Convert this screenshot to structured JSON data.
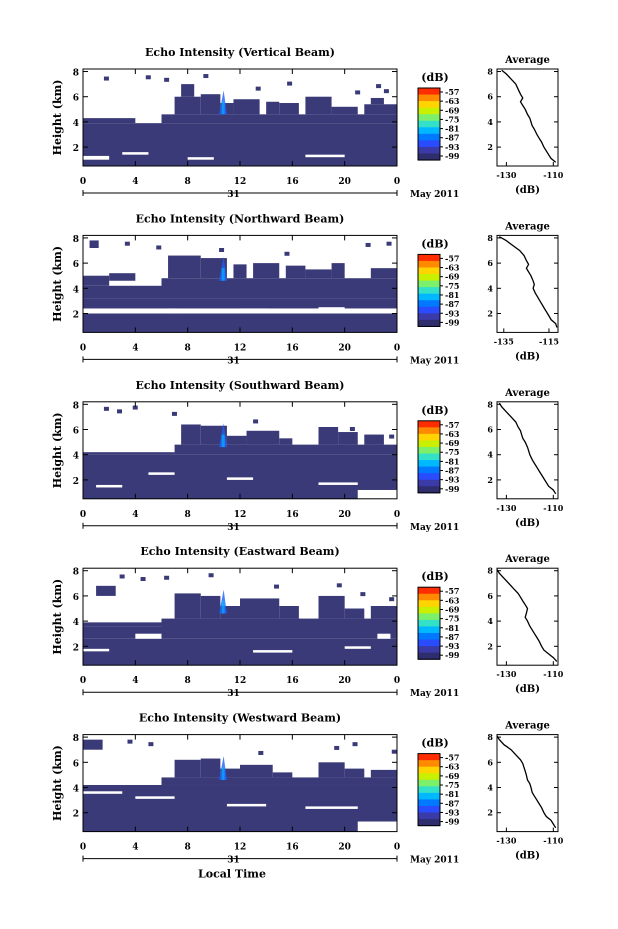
{
  "figure": {
    "bottom_xlabel": "Local Time",
    "date_label": "May 2011",
    "day_label": "31"
  },
  "colorbar": {
    "unit_label": "(dB)",
    "ticks": [
      "-57",
      "-63",
      "-69",
      "-75",
      "-81",
      "-87",
      "-93",
      "-99"
    ],
    "colors": [
      "#ff2d00",
      "#ff8a00",
      "#ffd400",
      "#c8f000",
      "#7cf06a",
      "#33e0c8",
      "#00b8ff",
      "#0078ff",
      "#2a4cff",
      "#3a3aa8",
      "#2e2e6e"
    ]
  },
  "chart_data": [
    {
      "type": "heatmap",
      "title": "Echo Intensity (Vertical Beam)",
      "ylabel": "Height (km)",
      "x_ticks": [
        "0",
        "4",
        "8",
        "12",
        "16",
        "20",
        "0"
      ],
      "y_ticks": [
        "2",
        "4",
        "6",
        "8"
      ],
      "xlim": [
        0,
        24
      ],
      "ylim": [
        0.5,
        8.2
      ],
      "fill_color": "#3a3a78",
      "cells": [
        [
          0,
          24,
          0.5,
          3.9
        ],
        [
          0,
          4,
          3.9,
          4.3
        ],
        [
          6,
          24,
          3.9,
          4.6
        ],
        [
          7,
          9,
          4.6,
          6.0
        ],
        [
          7.5,
          8.5,
          6.0,
          7.0
        ],
        [
          9,
          10.5,
          4.6,
          6.2
        ],
        [
          10.5,
          11.5,
          4.6,
          5.5
        ],
        [
          11.5,
          13.5,
          4.6,
          5.8
        ],
        [
          14,
          15,
          4.6,
          5.6
        ],
        [
          15,
          16.5,
          4.6,
          5.5
        ],
        [
          17,
          19,
          4.6,
          6.0
        ],
        [
          19,
          21,
          4.6,
          5.2
        ],
        [
          21.5,
          24,
          4.6,
          5.4
        ],
        [
          22,
          23,
          5.4,
          5.9
        ]
      ],
      "gaps": [
        [
          0,
          2,
          1.0,
          1.3
        ],
        [
          3,
          5,
          1.4,
          1.6
        ],
        [
          8,
          10,
          1.0,
          1.2
        ],
        [
          17,
          20,
          1.2,
          1.4
        ]
      ],
      "specks": [
        [
          1.6,
          7.6
        ],
        [
          4.8,
          7.7
        ],
        [
          6.2,
          7.5
        ],
        [
          9.2,
          7.8
        ],
        [
          13.2,
          6.8
        ],
        [
          15.6,
          7.2
        ],
        [
          20.8,
          6.5
        ],
        [
          23.0,
          6.6
        ],
        [
          22.4,
          7.0
        ]
      ],
      "profile": {
        "title": "Average",
        "xlabel": "(dB)",
        "x_ticks": [
          "-130",
          "-110"
        ],
        "x_tick_values": [
          -130,
          -110
        ],
        "y_ticks": [
          "2",
          "4",
          "6",
          "8"
        ],
        "xlim": [
          -134,
          -108
        ],
        "ylim": [
          0.5,
          8.2
        ],
        "x": [
          -109,
          -111,
          -112,
          -113,
          -114,
          -115,
          -116,
          -117,
          -118,
          -119,
          -119.5,
          -120,
          -121,
          -122,
          -123,
          -124,
          -123,
          -124,
          -125,
          -126,
          -128,
          -130,
          -132
        ],
        "y": [
          0.8,
          1.1,
          1.4,
          1.7,
          2.0,
          2.4,
          2.7,
          3.0,
          3.4,
          3.7,
          4.0,
          4.3,
          4.6,
          5.0,
          5.3,
          5.6,
          5.9,
          6.2,
          6.6,
          7.0,
          7.4,
          7.8,
          8.1
        ]
      }
    },
    {
      "type": "heatmap",
      "title": "Echo Intensity (Northward Beam)",
      "ylabel": "Height (km)",
      "x_ticks": [
        "0",
        "4",
        "8",
        "12",
        "16",
        "20",
        "0"
      ],
      "y_ticks": [
        "2",
        "4",
        "6",
        "8"
      ],
      "xlim": [
        0,
        24
      ],
      "ylim": [
        0.5,
        8.2
      ],
      "fill_color": "#3a3a78",
      "cells": [
        [
          0,
          24,
          0.5,
          2.0
        ],
        [
          0,
          24,
          2.4,
          3.2
        ],
        [
          0,
          6,
          3.2,
          4.2
        ],
        [
          6,
          24,
          3.2,
          4.8
        ],
        [
          0,
          2,
          4.2,
          5.0
        ],
        [
          2,
          4,
          4.6,
          5.2
        ],
        [
          6.5,
          9,
          4.8,
          6.6
        ],
        [
          9,
          11,
          4.8,
          6.4
        ],
        [
          11.5,
          12.5,
          4.8,
          5.9
        ],
        [
          13,
          15,
          4.8,
          6.0
        ],
        [
          15.5,
          17,
          4.8,
          5.8
        ],
        [
          17,
          19,
          4.8,
          5.5
        ],
        [
          19,
          20,
          4.8,
          6.0
        ],
        [
          22,
          24,
          4.8,
          5.6
        ],
        [
          0.5,
          1.2,
          7.2,
          7.8
        ]
      ],
      "gaps": [
        [
          6.5,
          7.2,
          2.0,
          2.4
        ],
        [
          12,
          14,
          2.1,
          2.4
        ],
        [
          18,
          20,
          2.2,
          2.5
        ]
      ],
      "specks": [
        [
          3.2,
          7.7
        ],
        [
          5.6,
          7.4
        ],
        [
          10.4,
          7.2
        ],
        [
          15.4,
          6.9
        ],
        [
          21.6,
          7.6
        ],
        [
          23.2,
          7.7
        ]
      ],
      "profile": {
        "title": "Average",
        "xlabel": "(dB)",
        "x_ticks": [
          "-135",
          "-115"
        ],
        "x_tick_values": [
          -135,
          -115
        ],
        "y_ticks": [
          "2",
          "4",
          "6",
          "8"
        ],
        "xlim": [
          -138,
          -111
        ],
        "ylim": [
          0.5,
          8.2
        ],
        "x": [
          -111.5,
          -112,
          -114,
          -115,
          -116,
          -117,
          -118,
          -119,
          -120,
          -121,
          -122,
          -121.5,
          -122,
          -123,
          -124,
          -125,
          -124,
          -125,
          -126,
          -128,
          -131,
          -134,
          -137
        ],
        "y": [
          0.9,
          1.2,
          1.5,
          1.8,
          2.1,
          2.4,
          2.7,
          3.0,
          3.3,
          3.6,
          4.0,
          4.3,
          4.6,
          5.0,
          5.3,
          5.6,
          5.9,
          6.2,
          6.6,
          7.0,
          7.4,
          7.8,
          8.1
        ]
      }
    },
    {
      "type": "heatmap",
      "title": "Echo Intensity (Southward Beam)",
      "ylabel": "Height (km)",
      "x_ticks": [
        "0",
        "4",
        "8",
        "12",
        "16",
        "20",
        "0"
      ],
      "y_ticks": [
        "2",
        "4",
        "6",
        "8"
      ],
      "xlim": [
        0,
        24
      ],
      "ylim": [
        0.5,
        8.2
      ],
      "fill_color": "#3a3a78",
      "cells": [
        [
          0,
          24,
          0.5,
          4.0
        ],
        [
          0,
          7,
          4.0,
          4.2
        ],
        [
          7,
          24,
          4.0,
          4.8
        ],
        [
          7.5,
          9,
          4.8,
          6.4
        ],
        [
          9,
          11,
          4.8,
          6.3
        ],
        [
          11,
          12.5,
          4.8,
          5.5
        ],
        [
          12.5,
          15,
          4.8,
          5.9
        ],
        [
          15,
          16,
          4.8,
          5.3
        ],
        [
          18,
          19.5,
          4.8,
          6.2
        ],
        [
          19.5,
          21,
          4.8,
          5.8
        ],
        [
          21.5,
          23,
          4.8,
          5.6
        ]
      ],
      "gaps": [
        [
          1,
          3,
          1.4,
          1.6
        ],
        [
          5,
          7,
          2.4,
          2.6
        ],
        [
          11,
          13,
          2.0,
          2.2
        ],
        [
          18,
          21,
          1.6,
          1.8
        ],
        [
          21,
          24,
          0.5,
          1.2
        ]
      ],
      "specks": [
        [
          1.6,
          7.8
        ],
        [
          2.6,
          7.6
        ],
        [
          3.8,
          7.9
        ],
        [
          6.8,
          7.4
        ],
        [
          13.0,
          6.8
        ],
        [
          20.4,
          6.2
        ],
        [
          23.4,
          5.6
        ]
      ],
      "profile": {
        "title": "Average",
        "xlabel": "(dB)",
        "x_ticks": [
          "-130",
          "-110"
        ],
        "x_tick_values": [
          -130,
          -110
        ],
        "y_ticks": [
          "2",
          "4",
          "6",
          "8"
        ],
        "xlim": [
          -134,
          -108
        ],
        "ylim": [
          0.5,
          8.2
        ],
        "x": [
          -109,
          -110,
          -112,
          -113,
          -114,
          -115,
          -116,
          -117,
          -118,
          -119,
          -120,
          -120.5,
          -121,
          -122,
          -123,
          -123.5,
          -124,
          -125,
          -126,
          -128,
          -130,
          -132,
          -133
        ],
        "y": [
          0.9,
          1.2,
          1.5,
          1.8,
          2.1,
          2.4,
          2.7,
          3.0,
          3.3,
          3.6,
          4.0,
          4.3,
          4.6,
          5.0,
          5.3,
          5.6,
          5.9,
          6.2,
          6.6,
          7.0,
          7.4,
          7.8,
          8.1
        ]
      }
    },
    {
      "type": "heatmap",
      "title": "Echo Intensity (Eastward Beam)",
      "ylabel": "Height (km)",
      "x_ticks": [
        "0",
        "4",
        "8",
        "12",
        "16",
        "20",
        "0"
      ],
      "y_ticks": [
        "2",
        "4",
        "6",
        "8"
      ],
      "xlim": [
        0,
        24
      ],
      "ylim": [
        0.5,
        8.2
      ],
      "fill_color": "#3a3a78",
      "cells": [
        [
          0,
          24,
          0.5,
          2.6
        ],
        [
          0,
          6,
          2.6,
          3.6
        ],
        [
          6,
          24,
          2.6,
          4.2
        ],
        [
          0,
          6,
          3.6,
          3.9
        ],
        [
          7,
          9,
          4.2,
          6.2
        ],
        [
          9,
          10.5,
          4.2,
          6.0
        ],
        [
          10.5,
          12,
          4.2,
          5.2
        ],
        [
          12,
          15,
          4.2,
          5.8
        ],
        [
          15,
          16.5,
          4.2,
          5.2
        ],
        [
          18,
          20,
          4.2,
          6.0
        ],
        [
          20,
          21.5,
          4.2,
          5.0
        ],
        [
          22,
          24,
          4.2,
          5.2
        ],
        [
          1,
          2.5,
          6.0,
          6.8
        ]
      ],
      "gaps": [
        [
          0,
          2,
          1.6,
          1.8
        ],
        [
          4,
          6,
          2.6,
          3.0
        ],
        [
          13,
          16,
          1.5,
          1.7
        ],
        [
          20,
          22,
          1.8,
          2.0
        ],
        [
          22.5,
          23.5,
          2.6,
          3.0
        ]
      ],
      "specks": [
        [
          2.8,
          7.7
        ],
        [
          4.4,
          7.5
        ],
        [
          6.2,
          7.6
        ],
        [
          9.6,
          7.8
        ],
        [
          14.6,
          6.9
        ],
        [
          19.4,
          7.0
        ],
        [
          21.2,
          6.3
        ],
        [
          23.4,
          5.9
        ]
      ],
      "profile": {
        "title": "Average",
        "xlabel": "(dB)",
        "x_ticks": [
          "-130",
          "-110"
        ],
        "x_tick_values": [
          -130,
          -110
        ],
        "y_ticks": [
          "2",
          "4",
          "6",
          "8"
        ],
        "xlim": [
          -134,
          -108
        ],
        "ylim": [
          0.5,
          8.2
        ],
        "x": [
          -108.5,
          -110,
          -112,
          -114,
          -115,
          -116,
          -117,
          -118,
          -119,
          -120,
          -121,
          -122,
          -121.5,
          -121,
          -122,
          -123,
          -124,
          -125,
          -127,
          -129,
          -131,
          -133,
          -134
        ],
        "y": [
          0.8,
          1.1,
          1.4,
          1.7,
          2.0,
          2.4,
          2.7,
          3.0,
          3.3,
          3.6,
          4.0,
          4.3,
          4.6,
          5.0,
          5.3,
          5.6,
          5.9,
          6.2,
          6.6,
          7.0,
          7.4,
          7.8,
          8.1
        ]
      }
    },
    {
      "type": "heatmap",
      "title": "Echo Intensity (Westward Beam)",
      "ylabel": "Height (km)",
      "x_ticks": [
        "0",
        "4",
        "8",
        "12",
        "16",
        "20",
        "0"
      ],
      "y_ticks": [
        "2",
        "4",
        "6",
        "8"
      ],
      "xlim": [
        0,
        24
      ],
      "ylim": [
        0.5,
        8.2
      ],
      "fill_color": "#3a3a78",
      "cells": [
        [
          0,
          24,
          0.5,
          4.2
        ],
        [
          6,
          24,
          4.2,
          4.8
        ],
        [
          7,
          9,
          4.8,
          6.2
        ],
        [
          9,
          10.5,
          4.8,
          6.3
        ],
        [
          10.5,
          12,
          4.8,
          5.5
        ],
        [
          12,
          14.5,
          4.8,
          5.8
        ],
        [
          14.5,
          16,
          4.8,
          5.2
        ],
        [
          18,
          20,
          4.8,
          6.0
        ],
        [
          20,
          21.5,
          4.8,
          5.5
        ],
        [
          22,
          24,
          4.8,
          5.4
        ],
        [
          0,
          1.5,
          7.0,
          7.8
        ]
      ],
      "gaps": [
        [
          0,
          3,
          3.5,
          3.7
        ],
        [
          4,
          7,
          3.1,
          3.3
        ],
        [
          11,
          14,
          2.5,
          2.7
        ],
        [
          17,
          21,
          2.3,
          2.5
        ],
        [
          21,
          24,
          0.5,
          1.3
        ]
      ],
      "specks": [
        [
          3.4,
          7.8
        ],
        [
          5.0,
          7.6
        ],
        [
          13.4,
          6.9
        ],
        [
          19.2,
          7.3
        ],
        [
          20.6,
          7.6
        ],
        [
          23.6,
          7.0
        ]
      ],
      "profile": {
        "title": "Average",
        "xlabel": "(dB)",
        "x_ticks": [
          "-130",
          "-110"
        ],
        "x_tick_values": [
          -130,
          -110
        ],
        "y_ticks": [
          "2",
          "4",
          "6",
          "8"
        ],
        "xlim": [
          -134,
          -108
        ],
        "ylim": [
          0.5,
          8.2
        ],
        "x": [
          -109,
          -110,
          -111,
          -113,
          -114,
          -115,
          -116,
          -117,
          -118,
          -119,
          -119.5,
          -120,
          -121,
          -121.5,
          -122,
          -122.5,
          -123,
          -124,
          -126,
          -128,
          -131,
          -133,
          -134
        ],
        "y": [
          0.8,
          1.1,
          1.4,
          1.7,
          2.0,
          2.4,
          2.7,
          3.0,
          3.3,
          3.6,
          4.0,
          4.3,
          4.6,
          5.0,
          5.3,
          5.6,
          5.9,
          6.2,
          6.6,
          7.0,
          7.4,
          7.8,
          8.1
        ]
      }
    }
  ]
}
